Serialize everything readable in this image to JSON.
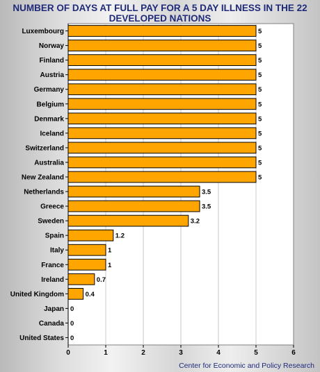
{
  "chart_data": {
    "type": "bar",
    "orientation": "horizontal",
    "title_lines": [
      "NUMBER OF DAYS AT FULL PAY FOR A 5 DAY ILLNESS IN THE 22",
      "DEVELOPED NATIONS"
    ],
    "categories": [
      "Luxembourg",
      "Norway",
      "Finland",
      "Austria",
      "Germany",
      "Belgium",
      "Denmark",
      "Iceland",
      "Switzerland",
      "Australia",
      "New Zealand",
      "Netherlands",
      "Greece",
      "Sweden",
      "Spain",
      "Italy",
      "France",
      "Ireland",
      "United Kingdom",
      "Japan",
      "Canada",
      "United States"
    ],
    "values": [
      5,
      5,
      5,
      5,
      5,
      5,
      5,
      5,
      5,
      5,
      5,
      3.5,
      3.5,
      3.2,
      1.2,
      1,
      1,
      0.7,
      0.4,
      0,
      0,
      0
    ],
    "value_labels": [
      "5",
      "5",
      "5",
      "5",
      "5",
      "5",
      "5",
      "5",
      "5",
      "5",
      "5",
      "3.5",
      "3.5",
      "3.2",
      "1.2",
      "1",
      "1",
      "0.7",
      "0.4",
      "0",
      "0",
      "0"
    ],
    "xlim": [
      0,
      6
    ],
    "x_ticks": [
      "0",
      "1",
      "2",
      "3",
      "4",
      "5",
      "6"
    ],
    "grid": "vertical",
    "bar_color": "#ffa500",
    "title_color": "#1f2a7a"
  },
  "source": "Center for Economic and Policy Research"
}
